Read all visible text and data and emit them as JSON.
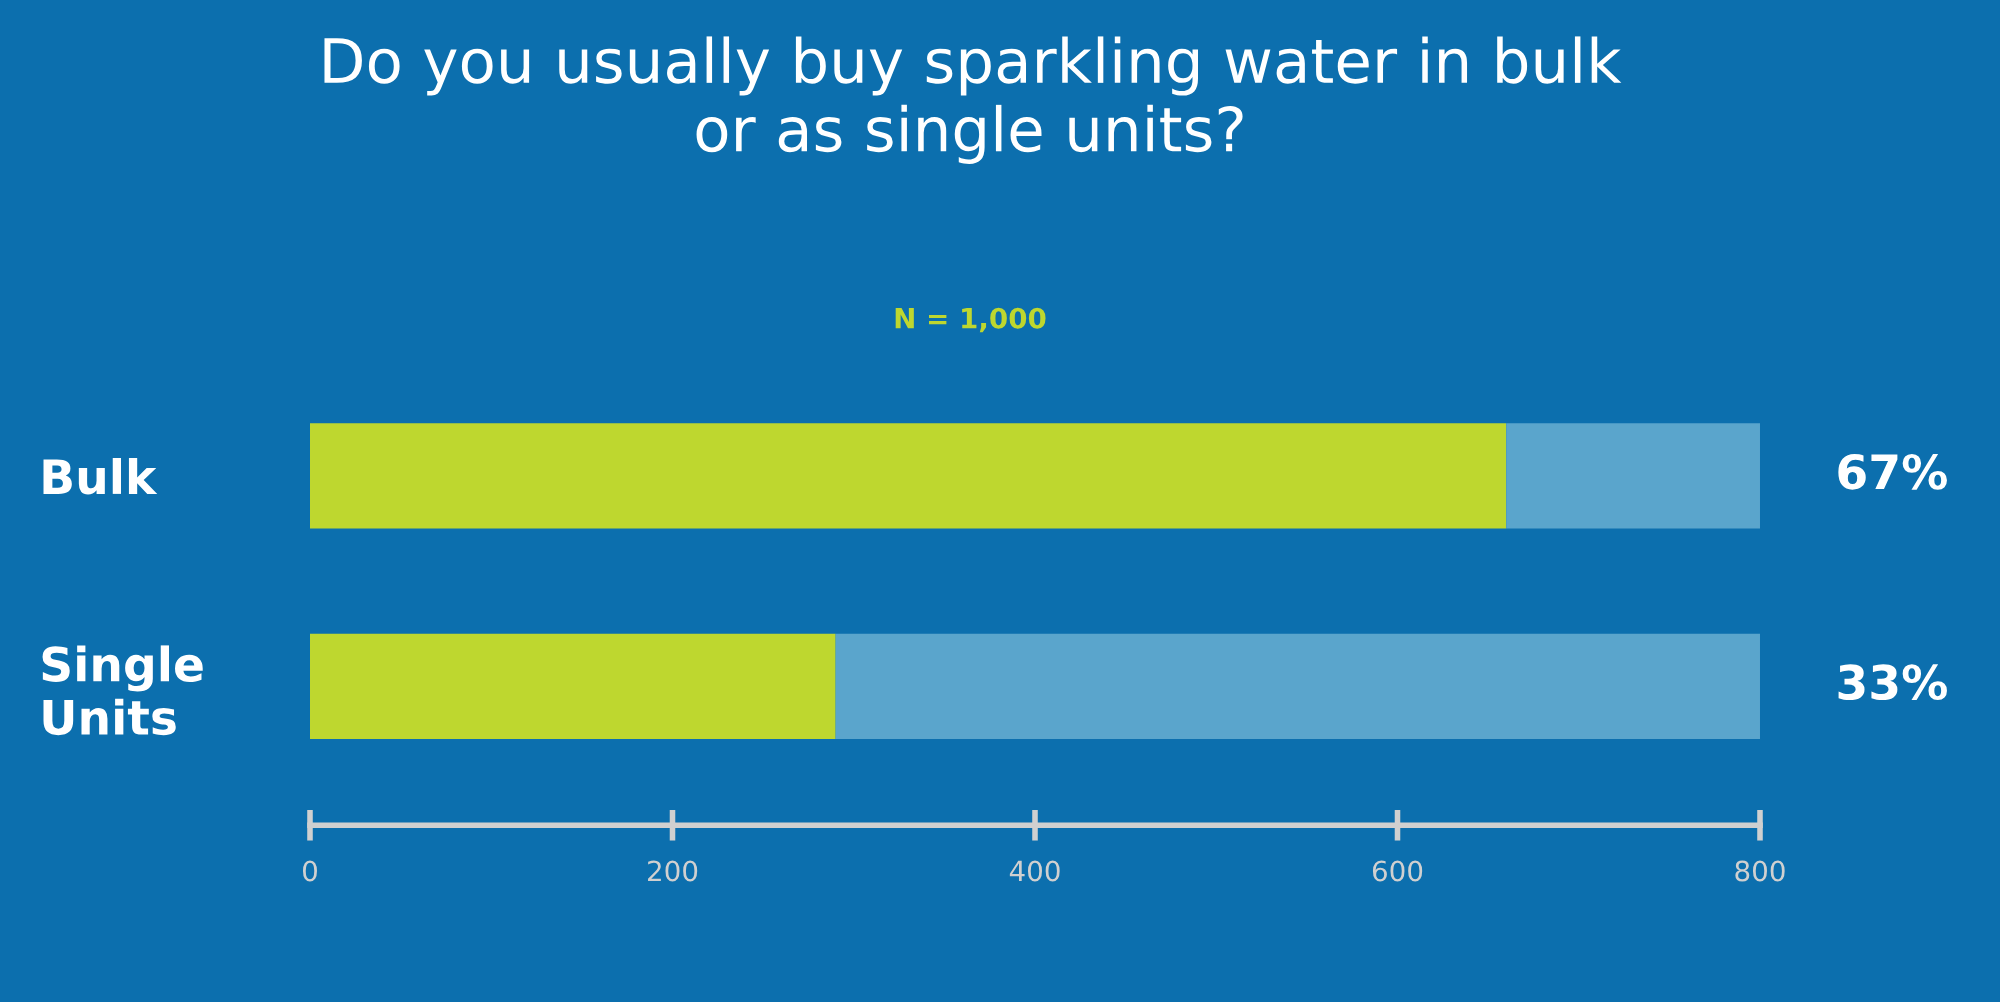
{
  "chart_data": {
    "type": "bar",
    "orientation": "horizontal",
    "stacked": true,
    "title": "Do you usually buy sparkling water in bulk\nor as single units?",
    "subtitle": "N = 1,000",
    "categories": [
      "Bulk",
      "Single\nUnits"
    ],
    "series": [
      {
        "color": "#bed72f",
        "values": [
          660,
          290
        ]
      },
      {
        "color": "#5aa5cc",
        "values": [
          140,
          510
        ]
      }
    ],
    "annotations": [
      {
        "text": "67%",
        "x": 800,
        "y": "Bulk"
      },
      {
        "text": "33%",
        "x": 800,
        "y": "Single\nUnits"
      }
    ],
    "xlim": [
      0,
      800
    ],
    "xticks": [
      0,
      200,
      400,
      600,
      800
    ],
    "grid": false,
    "legend": false
  }
}
